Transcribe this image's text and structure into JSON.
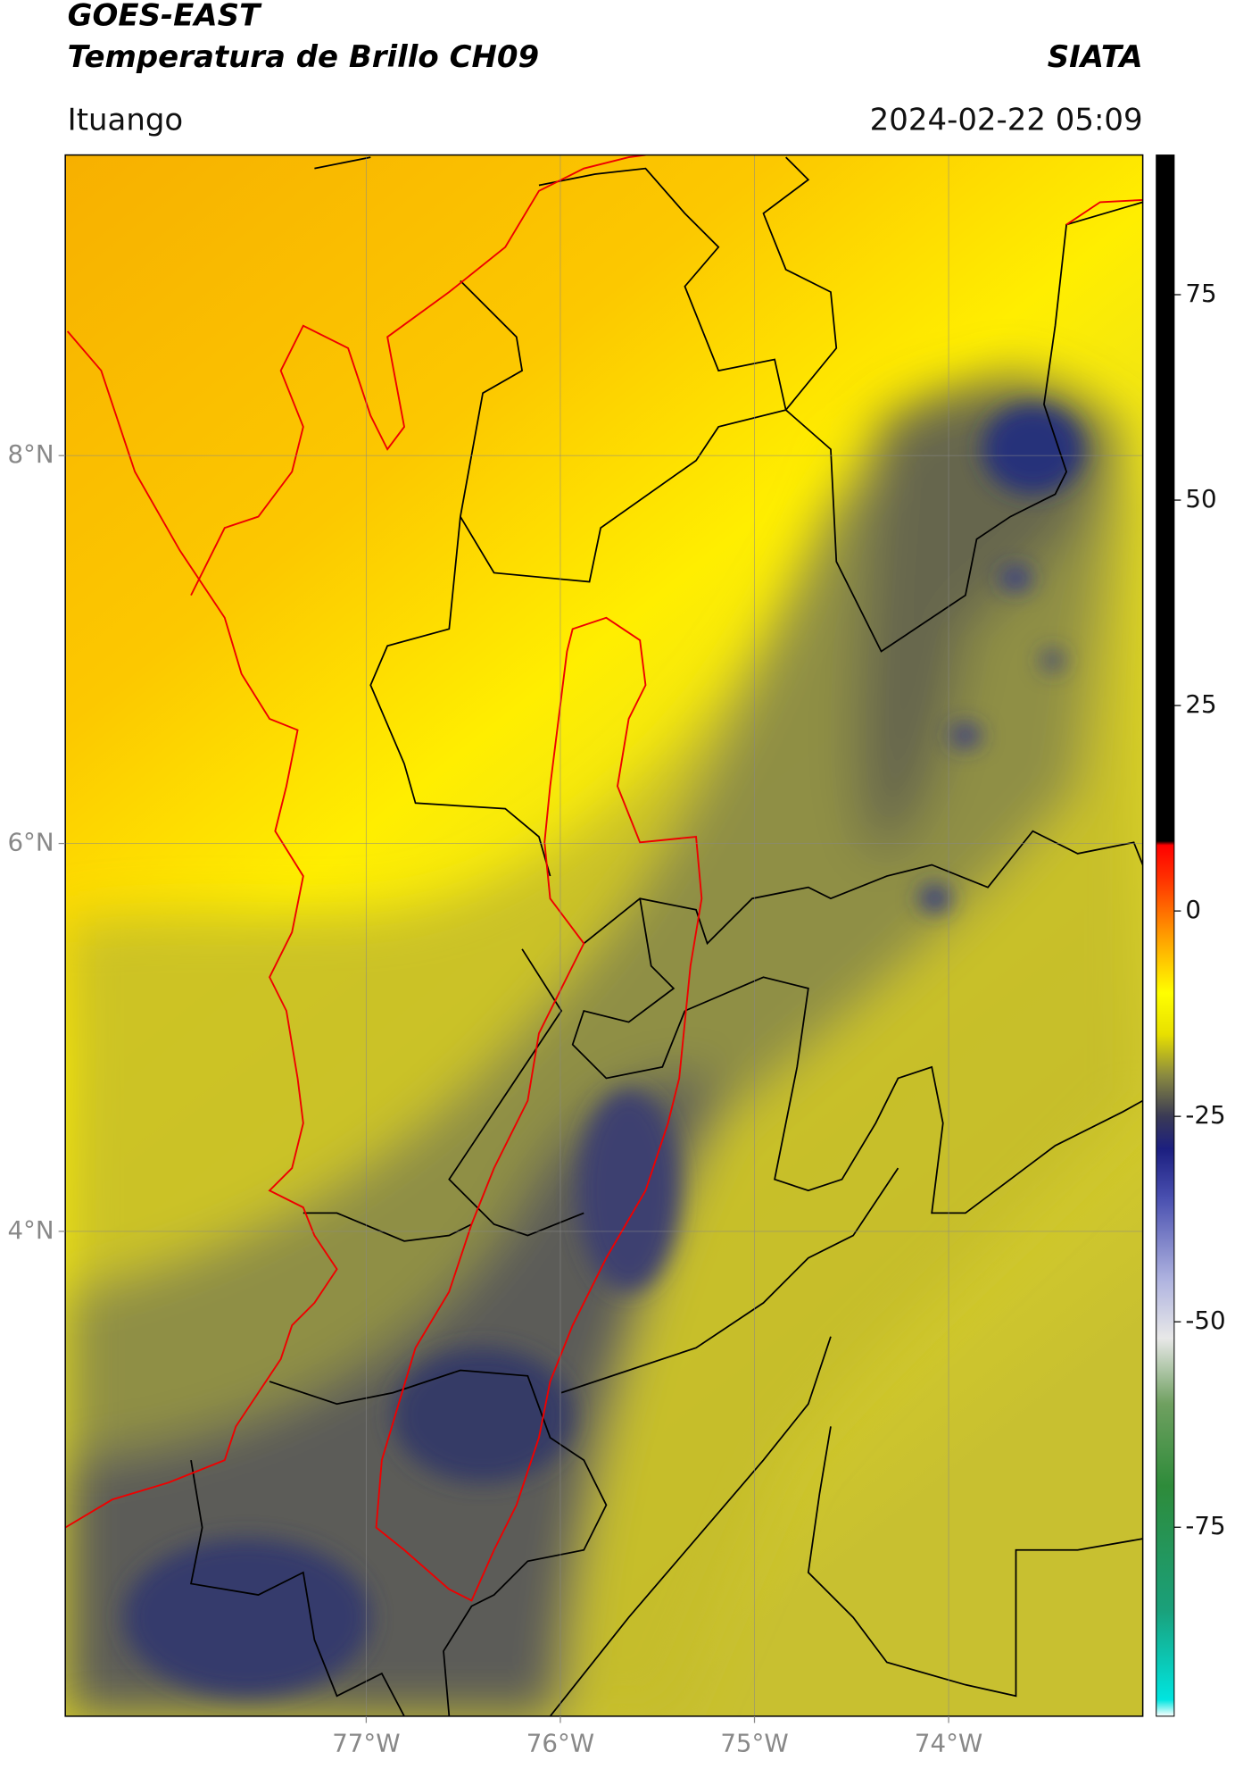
{
  "chart_data": {
    "type": "map",
    "title": "GOES-EAST",
    "subtitle": "Temperatura de Brillo CH09",
    "source": "SIATA",
    "location": "Ituango",
    "datetime": "2024-02-22 05:09",
    "xlim": [
      -78.55,
      -73.0
    ],
    "ylim": [
      1.5,
      9.55
    ],
    "xticks": [
      {
        "value": -77,
        "label": "77°W"
      },
      {
        "value": -76,
        "label": "76°W"
      },
      {
        "value": -75,
        "label": "75°W"
      },
      {
        "value": -74,
        "label": "74°W"
      }
    ],
    "yticks": [
      {
        "value": 4,
        "label": "4°N"
      },
      {
        "value": 6,
        "label": "6°N"
      },
      {
        "value": 8,
        "label": "8°N"
      }
    ],
    "grid": true,
    "colorbar": {
      "clim": [
        -98,
        92
      ],
      "ticks": [
        -75,
        -50,
        -25,
        0,
        25,
        50,
        75
      ],
      "colormap": [
        {
          "value": -98,
          "color": "#ffffff"
        },
        {
          "value": -96,
          "color": "#00e5e0"
        },
        {
          "value": -85,
          "color": "#1aa07a"
        },
        {
          "value": -70,
          "color": "#2e8b3a"
        },
        {
          "value": -60,
          "color": "#6fa060"
        },
        {
          "value": -52,
          "color": "#e8e8e8"
        },
        {
          "value": -45,
          "color": "#b0b4e0"
        },
        {
          "value": -35,
          "color": "#4a50b0"
        },
        {
          "value": -29,
          "color": "#1c1f80"
        },
        {
          "value": -25,
          "color": "#3a3a55"
        },
        {
          "value": -20,
          "color": "#8a8a40"
        },
        {
          "value": -15,
          "color": "#e8e000"
        },
        {
          "value": -10,
          "color": "#ffff00"
        },
        {
          "value": -3,
          "color": "#ff9c00"
        },
        {
          "value": 4,
          "color": "#ff3000"
        },
        {
          "value": 8,
          "color": "#ff0000"
        },
        {
          "value": 8.5,
          "color": "#000000"
        },
        {
          "value": 92,
          "color": "#000000"
        }
      ]
    }
  }
}
